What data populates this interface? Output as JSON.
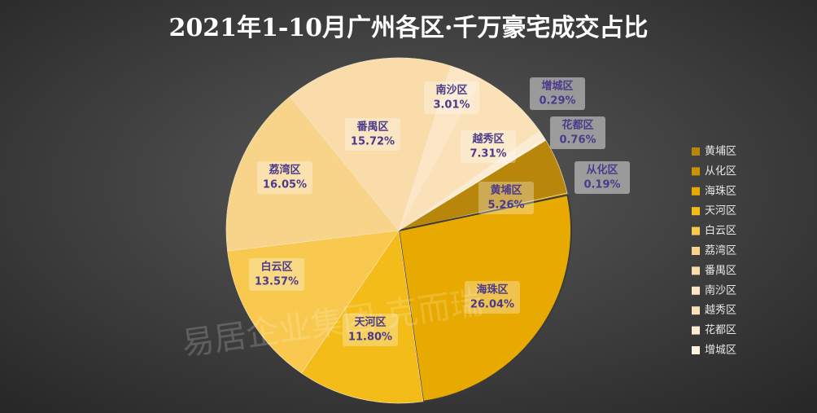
{
  "chart_data": {
    "type": "pie",
    "title": "2021年1-10月广州各区·千万豪宅成交占比",
    "watermark": "易居企业集团·克而瑞",
    "categories": [
      "黄埔区",
      "从化区",
      "海珠区",
      "天河区",
      "白云区",
      "荔湾区",
      "番禺区",
      "南沙区",
      "越秀区",
      "花都区",
      "增城区"
    ],
    "values": [
      5.26,
      0.19,
      26.04,
      11.8,
      13.57,
      16.05,
      15.72,
      3.01,
      7.31,
      0.76,
      0.29
    ],
    "value_labels": [
      "5.26%",
      "0.19%",
      "26.04%",
      "11.80%",
      "13.57%",
      "16.05%",
      "15.72%",
      "3.01%",
      "7.31%",
      "0.76%",
      "0.29%"
    ],
    "colors": [
      "#b8860b",
      "#c99400",
      "#e8aa00",
      "#f3bc18",
      "#f8c94e",
      "#f8d48a",
      "#f9dcaa",
      "#fce6c6",
      "#fbe1b8",
      "#fdecd4",
      "#fff2df"
    ],
    "legend": "right"
  }
}
